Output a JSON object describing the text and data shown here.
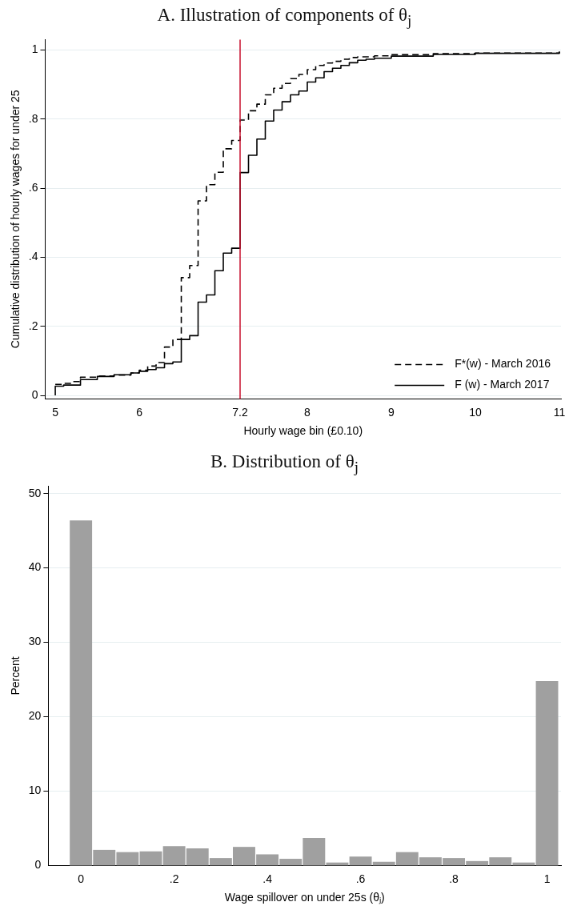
{
  "chart_data": [
    {
      "type": "step",
      "title": "A. Illustration of components of θ$_{j}$",
      "xlabel": "Hourly wage bin (£0.10)",
      "ylabel": "Cumulative distribution of hourly wages for under 25",
      "xlim": [
        4.88,
        11.02
      ],
      "xticks": [
        5,
        6,
        7.2,
        8,
        9,
        10,
        11
      ],
      "ylim": [
        -0.01,
        1.03
      ],
      "yticks": [
        0,
        {
          "value": 0.2,
          "label": ".2"
        },
        {
          "value": 0.4,
          "label": ".4"
        },
        {
          "value": 0.6,
          "label": ".6"
        },
        {
          "value": 0.8,
          "label": ".8"
        },
        1
      ],
      "grid": "y",
      "legend": "bottom right",
      "marker": "none",
      "ref_lines": [
        {
          "axis": "x",
          "value": 7.2,
          "color": "#c8102e"
        }
      ],
      "series": [
        {
          "name": "F*(w) - March 2016",
          "color": "#000000",
          "line_style": "dashed",
          "x": [
            5,
            5.1,
            5.2,
            5.3,
            5.5,
            5.7,
            5.9,
            6.0,
            6.1,
            6.2,
            6.3,
            6.4,
            6.5,
            6.6,
            6.7,
            6.8,
            6.9,
            7.0,
            7.1,
            7.2,
            7.3,
            7.4,
            7.5,
            7.6,
            7.7,
            7.8,
            7.9,
            8.0,
            8.1,
            8.2,
            8.3,
            8.4,
            8.5,
            8.6,
            8.8,
            9.0,
            9.5,
            10.0,
            11.0
          ],
          "values": [
            0.032,
            0.035,
            0.04,
            0.053,
            0.056,
            0.059,
            0.065,
            0.073,
            0.085,
            0.095,
            0.14,
            0.162,
            0.341,
            0.376,
            0.563,
            0.61,
            0.646,
            0.714,
            0.738,
            0.797,
            0.824,
            0.843,
            0.87,
            0.889,
            0.903,
            0.917,
            0.929,
            0.943,
            0.955,
            0.962,
            0.967,
            0.973,
            0.978,
            0.98,
            0.983,
            0.986,
            0.989,
            0.991,
            0.995
          ]
        },
        {
          "name": "F (w) - March 2017",
          "color": "#000000",
          "line_style": "solid",
          "x": [
            5,
            5,
            5.1,
            5.3,
            5.5,
            5.7,
            5.9,
            6.0,
            6.1,
            6.2,
            6.3,
            6.4,
            6.5,
            6.6,
            6.7,
            6.8,
            6.9,
            7.0,
            7.1,
            7.2,
            7.3,
            7.4,
            7.5,
            7.6,
            7.7,
            7.8,
            7.9,
            8.0,
            8.1,
            8.2,
            8.3,
            8.4,
            8.5,
            8.6,
            8.7,
            8.8,
            9.0,
            9.5,
            10.0,
            11.0
          ],
          "values": [
            0,
            0.027,
            0.03,
            0.046,
            0.055,
            0.06,
            0.065,
            0.07,
            0.075,
            0.08,
            0.092,
            0.097,
            0.162,
            0.173,
            0.27,
            0.291,
            0.361,
            0.412,
            0.426,
            0.645,
            0.695,
            0.742,
            0.794,
            0.826,
            0.85,
            0.87,
            0.881,
            0.907,
            0.919,
            0.937,
            0.947,
            0.955,
            0.963,
            0.97,
            0.973,
            0.976,
            0.982,
            0.987,
            0.99,
            0.995
          ]
        }
      ]
    },
    {
      "type": "histogram",
      "title": "B. Distribution of θ$_{j}$",
      "xlabel": "Wage spillover on under 25s (θⱼ)",
      "ylabel": "Percent",
      "bins": [
        -0.025,
        0.025,
        0.075,
        0.125,
        0.175,
        0.225,
        0.275,
        0.325,
        0.375,
        0.425,
        0.475,
        0.525,
        0.575,
        0.625,
        0.675,
        0.725,
        0.775,
        0.825,
        0.875,
        0.925,
        0.975,
        1.025
      ],
      "values": [
        46.4,
        2.1,
        1.8,
        1.9,
        2.6,
        2.3,
        1.0,
        2.5,
        1.5,
        0.9,
        3.7,
        0.4,
        1.2,
        0.5,
        1.8,
        1.1,
        1.0,
        0.6,
        1.1,
        0.4,
        24.8
      ],
      "color": "#a0a0a0",
      "xlim": [
        -0.07,
        1.03
      ],
      "xticks": [
        0,
        {
          "value": 0.2,
          "label": ".2"
        },
        {
          "value": 0.4,
          "label": ".4"
        },
        {
          "value": 0.6,
          "label": ".6"
        },
        {
          "value": 0.8,
          "label": ".8"
        },
        1
      ],
      "ylim": [
        0,
        51
      ],
      "yticks": [
        0,
        10,
        20,
        30,
        40,
        50
      ],
      "grid": "y"
    }
  ]
}
